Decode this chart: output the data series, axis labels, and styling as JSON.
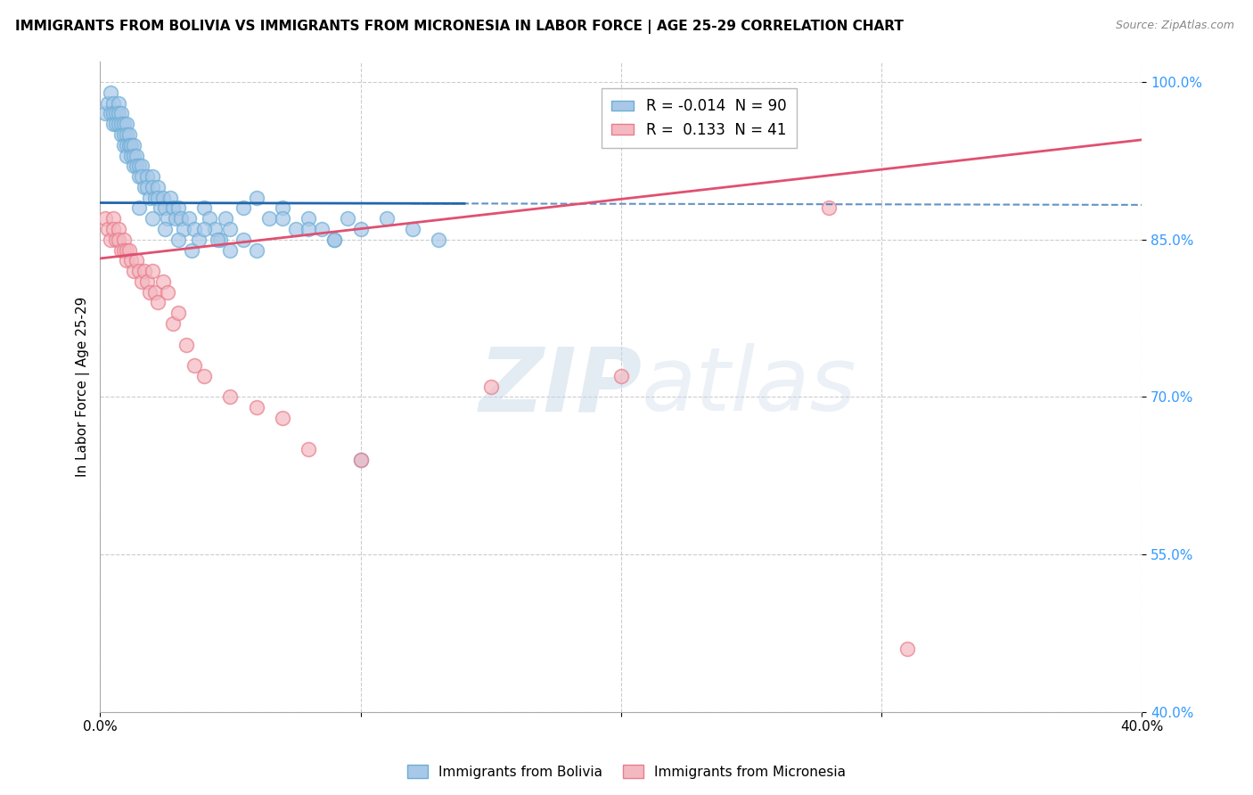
{
  "title": "IMMIGRANTS FROM BOLIVIA VS IMMIGRANTS FROM MICRONESIA IN LABOR FORCE | AGE 25-29 CORRELATION CHART",
  "source": "Source: ZipAtlas.com",
  "ylabel": "In Labor Force | Age 25-29",
  "xmin": 0.0,
  "xmax": 0.4,
  "ymin": 0.4,
  "ymax": 1.02,
  "yticks": [
    0.4,
    0.55,
    0.7,
    0.85,
    1.0
  ],
  "ytick_labels": [
    "40.0%",
    "55.0%",
    "70.0%",
    "85.0%",
    "100.0%"
  ],
  "xticks": [
    0.0,
    0.1,
    0.2,
    0.3,
    0.4
  ],
  "xtick_labels": [
    "0.0%",
    "",
    "",
    "",
    "40.0%"
  ],
  "bolivia_color": "#a8c8e8",
  "bolivia_edge_color": "#6baed6",
  "micronesia_color": "#f4b8c1",
  "micronesia_edge_color": "#e87d8a",
  "bolivia_R": -0.014,
  "bolivia_N": 90,
  "micronesia_R": 0.133,
  "micronesia_N": 41,
  "bolivia_line_color": "#2166ac",
  "micronesia_line_color": "#e05070",
  "watermark_zip": "ZIP",
  "watermark_atlas": "atlas",
  "bolivia_x": [
    0.002,
    0.003,
    0.004,
    0.004,
    0.005,
    0.005,
    0.005,
    0.006,
    0.006,
    0.007,
    0.007,
    0.007,
    0.008,
    0.008,
    0.008,
    0.009,
    0.009,
    0.009,
    0.01,
    0.01,
    0.01,
    0.01,
    0.011,
    0.011,
    0.012,
    0.012,
    0.013,
    0.013,
    0.013,
    0.014,
    0.014,
    0.015,
    0.015,
    0.016,
    0.016,
    0.017,
    0.018,
    0.018,
    0.019,
    0.02,
    0.02,
    0.021,
    0.022,
    0.022,
    0.023,
    0.024,
    0.025,
    0.026,
    0.027,
    0.028,
    0.029,
    0.03,
    0.031,
    0.032,
    0.034,
    0.036,
    0.038,
    0.04,
    0.042,
    0.044,
    0.046,
    0.048,
    0.05,
    0.055,
    0.06,
    0.065,
    0.07,
    0.075,
    0.08,
    0.085,
    0.09,
    0.095,
    0.1,
    0.11,
    0.12,
    0.13,
    0.015,
    0.02,
    0.025,
    0.03,
    0.035,
    0.04,
    0.045,
    0.05,
    0.055,
    0.06,
    0.07,
    0.08,
    0.09,
    0.1
  ],
  "bolivia_y": [
    0.97,
    0.98,
    0.97,
    0.99,
    0.98,
    0.97,
    0.96,
    0.97,
    0.96,
    0.98,
    0.97,
    0.96,
    0.97,
    0.96,
    0.95,
    0.96,
    0.95,
    0.94,
    0.96,
    0.95,
    0.94,
    0.93,
    0.95,
    0.94,
    0.94,
    0.93,
    0.94,
    0.93,
    0.92,
    0.93,
    0.92,
    0.92,
    0.91,
    0.92,
    0.91,
    0.9,
    0.91,
    0.9,
    0.89,
    0.91,
    0.9,
    0.89,
    0.9,
    0.89,
    0.88,
    0.89,
    0.88,
    0.87,
    0.89,
    0.88,
    0.87,
    0.88,
    0.87,
    0.86,
    0.87,
    0.86,
    0.85,
    0.88,
    0.87,
    0.86,
    0.85,
    0.87,
    0.86,
    0.88,
    0.89,
    0.87,
    0.88,
    0.86,
    0.87,
    0.86,
    0.85,
    0.87,
    0.86,
    0.87,
    0.86,
    0.85,
    0.88,
    0.87,
    0.86,
    0.85,
    0.84,
    0.86,
    0.85,
    0.84,
    0.85,
    0.84,
    0.87,
    0.86,
    0.85,
    0.64
  ],
  "micronesia_x": [
    0.002,
    0.003,
    0.004,
    0.005,
    0.005,
    0.006,
    0.007,
    0.007,
    0.008,
    0.009,
    0.009,
    0.01,
    0.01,
    0.011,
    0.012,
    0.013,
    0.014,
    0.015,
    0.016,
    0.017,
    0.018,
    0.019,
    0.02,
    0.021,
    0.022,
    0.024,
    0.026,
    0.028,
    0.03,
    0.033,
    0.036,
    0.04,
    0.05,
    0.06,
    0.07,
    0.08,
    0.1,
    0.15,
    0.2,
    0.28,
    0.31
  ],
  "micronesia_y": [
    0.87,
    0.86,
    0.85,
    0.87,
    0.86,
    0.85,
    0.86,
    0.85,
    0.84,
    0.85,
    0.84,
    0.84,
    0.83,
    0.84,
    0.83,
    0.82,
    0.83,
    0.82,
    0.81,
    0.82,
    0.81,
    0.8,
    0.82,
    0.8,
    0.79,
    0.81,
    0.8,
    0.77,
    0.78,
    0.75,
    0.73,
    0.72,
    0.7,
    0.69,
    0.68,
    0.65,
    0.64,
    0.71,
    0.72,
    0.88,
    0.46
  ],
  "bolivia_line_y0": 0.885,
  "bolivia_line_y1": 0.883,
  "micronesia_line_y0": 0.832,
  "micronesia_line_y1": 0.945
}
